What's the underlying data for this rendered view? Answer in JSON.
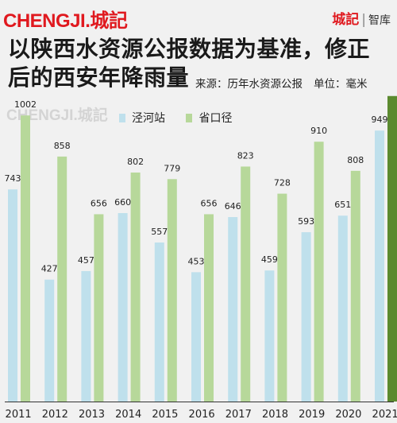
{
  "header": {
    "logo": "CHENGJI.城記",
    "brand": "城記",
    "brand_sep": "|",
    "brand_sub": "智库"
  },
  "title_line1": "以陕西水资源公报数据为基准，修正",
  "title_line2": "后的西安年降雨量",
  "source": "来源：历年水资源公报",
  "unit": "单位：毫米",
  "watermark": "CHENGJI.城記",
  "colors": {
    "series1": "#bfe0ec",
    "series2": "#b7d89a",
    "highlight": "#5b8a2f",
    "axis": "#333333"
  },
  "chart_data": {
    "type": "bar",
    "categories": [
      "2011",
      "2012",
      "2013",
      "2014",
      "2015",
      "2016",
      "2017",
      "2018",
      "2019",
      "2020",
      "2021"
    ],
    "series": [
      {
        "name": "泾河站",
        "values": [
          743,
          427,
          457,
          660,
          557,
          453,
          646,
          459,
          593,
          651,
          949
        ]
      },
      {
        "name": "省口径",
        "values": [
          1002,
          858,
          656,
          802,
          779,
          656,
          823,
          728,
          910,
          808,
          null
        ]
      }
    ],
    "highlight_2021_value_shown_by_dark_bar": 1070,
    "ylim": [
      0,
      1100
    ],
    "title": "",
    "xlabel": "",
    "ylabel": ""
  }
}
